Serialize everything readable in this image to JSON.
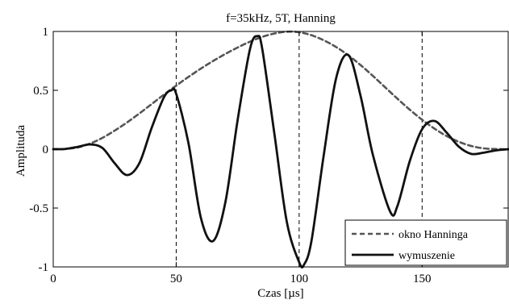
{
  "chart_data": {
    "type": "line",
    "title": "f=35kHz, 5T, Hanning",
    "xlabel": "Czas [µs]",
    "ylabel": "Amplituda",
    "xlim": [
      0,
      185
    ],
    "ylim": [
      -1,
      1
    ],
    "xticks": [
      0,
      50,
      100,
      150
    ],
    "xtick_labels": [
      "0",
      "50",
      "100",
      "150"
    ],
    "yticks": [
      -1,
      -0.5,
      0,
      0.5,
      1
    ],
    "ytick_labels": [
      "-1",
      "-0.5",
      "0",
      "0.5",
      "1"
    ],
    "vertical_reference_lines_x": [
      50,
      100,
      150
    ],
    "legend_position": "bottom-right",
    "series": [
      {
        "name": "okno Hanninga",
        "line_style": "dashed",
        "color": "#555555",
        "x": [
          0,
          5,
          10,
          15,
          20,
          25,
          30,
          35,
          40,
          45,
          50,
          55,
          60,
          65,
          70,
          75,
          80,
          85,
          90,
          95,
          100,
          105,
          110,
          115,
          120,
          125,
          130,
          135,
          140,
          145,
          150,
          155,
          160,
          165,
          170,
          175,
          180,
          185
        ],
        "y": [
          0,
          0.002,
          0.015,
          0.048,
          0.096,
          0.158,
          0.227,
          0.303,
          0.383,
          0.463,
          0.54,
          0.614,
          0.684,
          0.749,
          0.809,
          0.864,
          0.913,
          0.954,
          0.983,
          0.998,
          0.993,
          0.968,
          0.925,
          0.868,
          0.797,
          0.714,
          0.622,
          0.525,
          0.428,
          0.335,
          0.25,
          0.175,
          0.111,
          0.062,
          0.027,
          0.007,
          0.001,
          0
        ]
      },
      {
        "name": "wymuszenie",
        "line_style": "solid",
        "color": "#111111",
        "x": [
          0,
          5,
          10,
          15,
          20,
          25,
          30,
          35,
          40,
          45,
          48,
          50,
          55,
          60,
          65,
          70,
          75,
          80,
          83,
          85,
          90,
          95,
          100,
          102,
          105,
          110,
          115,
          120,
          125,
          130,
          137,
          140,
          145,
          150,
          155,
          160,
          165,
          170,
          175,
          180,
          185
        ],
        "y": [
          0,
          0.002,
          0.02,
          0.04,
          0.01,
          -0.12,
          -0.22,
          -0.12,
          0.18,
          0.44,
          0.5,
          0.47,
          0.05,
          -0.58,
          -0.78,
          -0.45,
          0.25,
          0.85,
          0.96,
          0.85,
          0.12,
          -0.62,
          -0.96,
          -0.98,
          -0.78,
          -0.05,
          0.6,
          0.8,
          0.45,
          -0.05,
          -0.53,
          -0.48,
          -0.1,
          0.17,
          0.24,
          0.14,
          0.02,
          -0.04,
          -0.03,
          -0.01,
          0
        ]
      }
    ]
  }
}
